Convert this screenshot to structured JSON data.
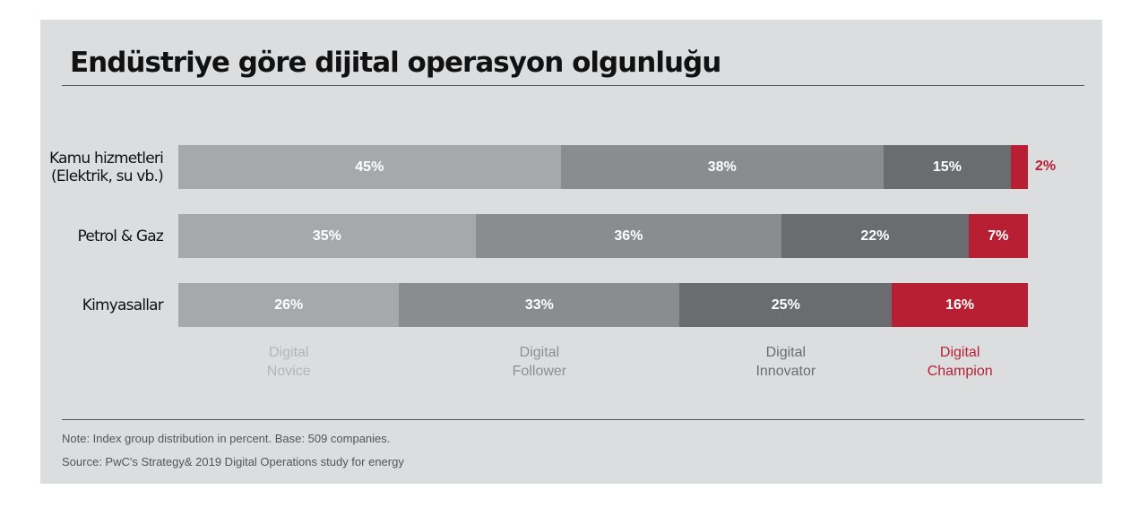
{
  "chart_data": {
    "type": "bar",
    "stacked": true,
    "orientation": "horizontal",
    "title": "Endüstriye göre dijital operasyon olgunluğu",
    "categories": [
      "Kamu hizmetleri (Elektrik, su vb.)",
      "Petrol & Gaz",
      "Kimyasallar"
    ],
    "category_lines": [
      [
        "Kamu hizmetleri",
        "(Elektrik, su vb.)"
      ],
      [
        "Petrol & Gaz"
      ],
      [
        "Kimyasallar"
      ]
    ],
    "series": [
      {
        "name": "Digital Novice",
        "lines": [
          "Digital",
          "Novice"
        ],
        "color": "#a7a8ab",
        "label_color": "#b4b5b8",
        "values": [
          45,
          35,
          26
        ]
      },
      {
        "name": "Digital Follower",
        "lines": [
          "Digital",
          "Follower"
        ],
        "color": "#8b8c8f",
        "label_color": "#8e8f92",
        "values": [
          38,
          36,
          33
        ]
      },
      {
        "name": "Digital Innovator",
        "lines": [
          "Digital",
          "Innovator"
        ],
        "color": "#6b6c70",
        "label_color": "#6b6c70",
        "values": [
          15,
          22,
          25
        ]
      },
      {
        "name": "Digital Champion",
        "lines": [
          "Digital",
          "Champion"
        ],
        "color": "#b81f33",
        "label_color": "#b81f33",
        "values": [
          2,
          7,
          16
        ]
      }
    ],
    "value_suffix": "%",
    "xlim": [
      0,
      100
    ],
    "legend": "bottom"
  },
  "notes": {
    "note": "Note: Index group distribution in percent. Base: 509 companies.",
    "source": "Source: PwC's Strategy& 2019 Digital Operations study for energy"
  }
}
